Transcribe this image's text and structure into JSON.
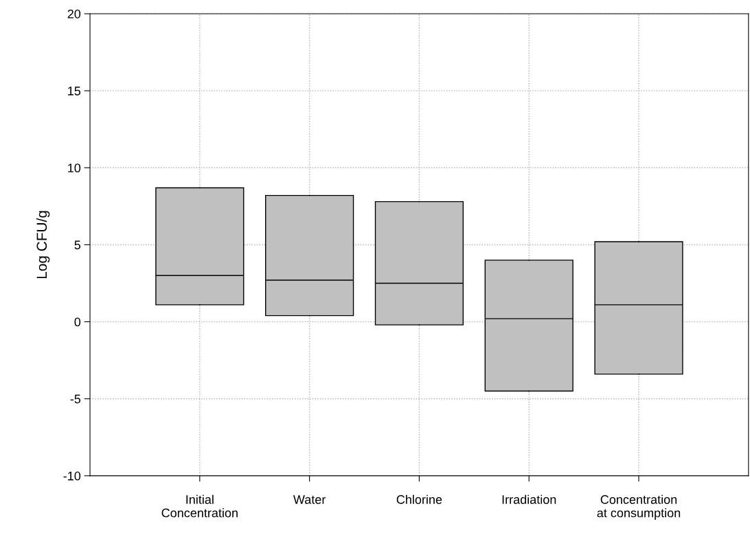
{
  "chart_data": {
    "type": "box",
    "ylabel": "Log CFU/g",
    "categories": [
      "Initial\nConcentration",
      "Water",
      "Chlorine",
      "Irradiation",
      "Concentration\nat consumption"
    ],
    "color": "#c0c0c0",
    "boxes": [
      {
        "low": 1.1,
        "q1": 1.1,
        "median": 3.0,
        "q3": 8.7,
        "high": 8.7
      },
      {
        "low": 0.4,
        "q1": 0.4,
        "median": 2.7,
        "q3": 8.2,
        "high": 8.2
      },
      {
        "low": -0.2,
        "q1": -0.2,
        "median": 2.5,
        "q3": 7.8,
        "high": 7.8
      },
      {
        "low": -4.5,
        "q1": -4.5,
        "median": 0.2,
        "q3": 4.0,
        "high": 4.0
      },
      {
        "low": -3.4,
        "q1": -3.4,
        "median": 1.1,
        "q3": 5.2,
        "high": 5.2
      }
    ],
    "ylim": [
      -10,
      20
    ],
    "yticks": [
      -10,
      -5,
      0,
      5,
      10,
      15,
      20
    ],
    "grid": true
  }
}
